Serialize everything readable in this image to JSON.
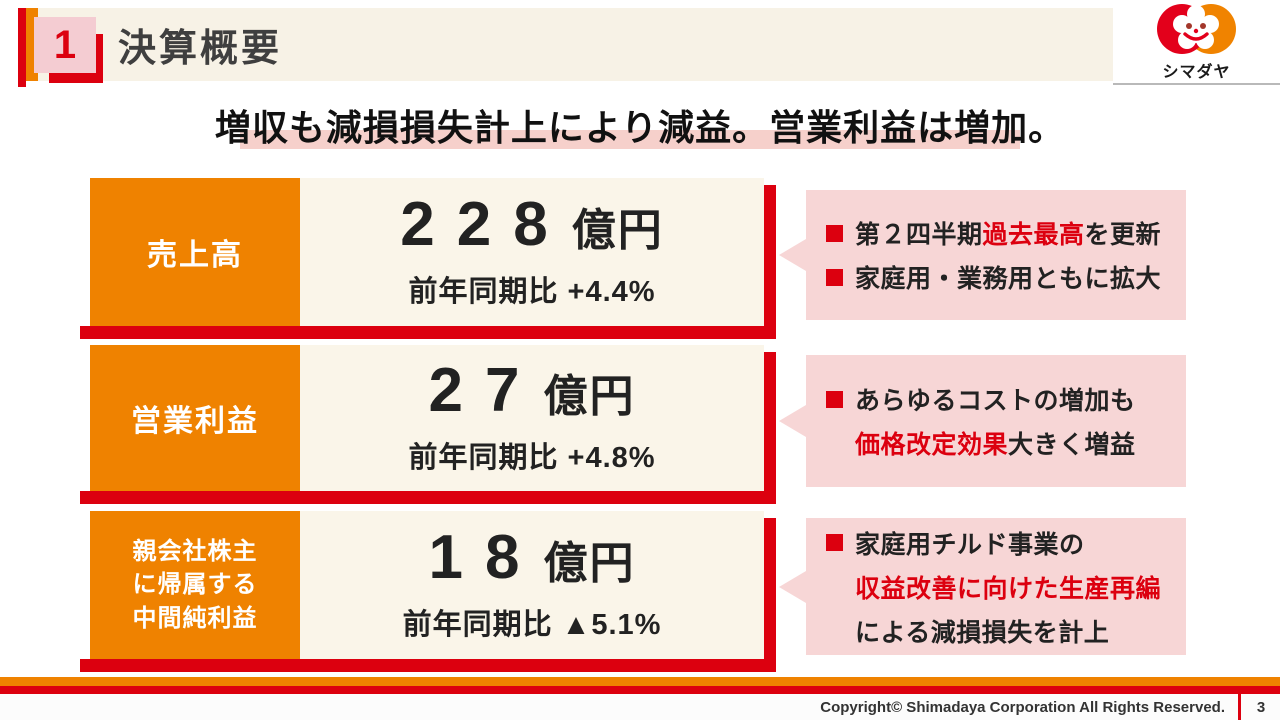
{
  "header": {
    "section_number": "1",
    "title": "決算概要",
    "logo_text": "シマダヤ"
  },
  "subtitle": "増収も減損損失計上により減益。営業利益は増加。",
  "metrics": [
    {
      "label": "売上高",
      "value": "228",
      "unit": "億円",
      "comparison": "前年同期比 +4.4%",
      "notes": [
        {
          "lines": [
            [
              {
                "text": "第２四半期"
              },
              {
                "text": "過去最高",
                "red": true
              },
              {
                "text": "を更新"
              }
            ]
          ]
        },
        {
          "lines": [
            [
              {
                "text": "家庭用・業務用ともに拡大"
              }
            ]
          ]
        }
      ]
    },
    {
      "label": "営業利益",
      "value": "27",
      "unit": "億円",
      "comparison": "前年同期比 +4.8%",
      "notes": [
        {
          "lines": [
            [
              {
                "text": "あらゆるコストの増加も"
              }
            ],
            [
              {
                "text": "価格改定効果",
                "red": true
              },
              {
                "text": "大きく増益"
              }
            ]
          ]
        }
      ]
    },
    {
      "label": "親会社株主\nに帰属する\n中間純利益",
      "value": "18",
      "unit": "億円",
      "comparison": "前年同期比 ▲5.1%",
      "notes": [
        {
          "lines": [
            [
              {
                "text": "家庭用チルド事業の"
              }
            ],
            [
              {
                "text": "収益改善に向けた生産再編",
                "red": true
              }
            ],
            [
              {
                "text": "による減損損失を計上"
              }
            ]
          ]
        }
      ]
    }
  ],
  "footer": {
    "copyright": "Copyright© Shimadaya Corporation All Rights Reserved.",
    "page_number": "3"
  },
  "colors": {
    "accent_red": "#dc000f",
    "accent_orange": "#ef8200",
    "panel_cream": "#faf5e9",
    "header_cream": "#f7f2e6",
    "callout_pink": "#f7d6d6",
    "highlight_pink": "#f6d0cb",
    "logo_red": "#e3001b",
    "logo_orange": "#f08300"
  }
}
